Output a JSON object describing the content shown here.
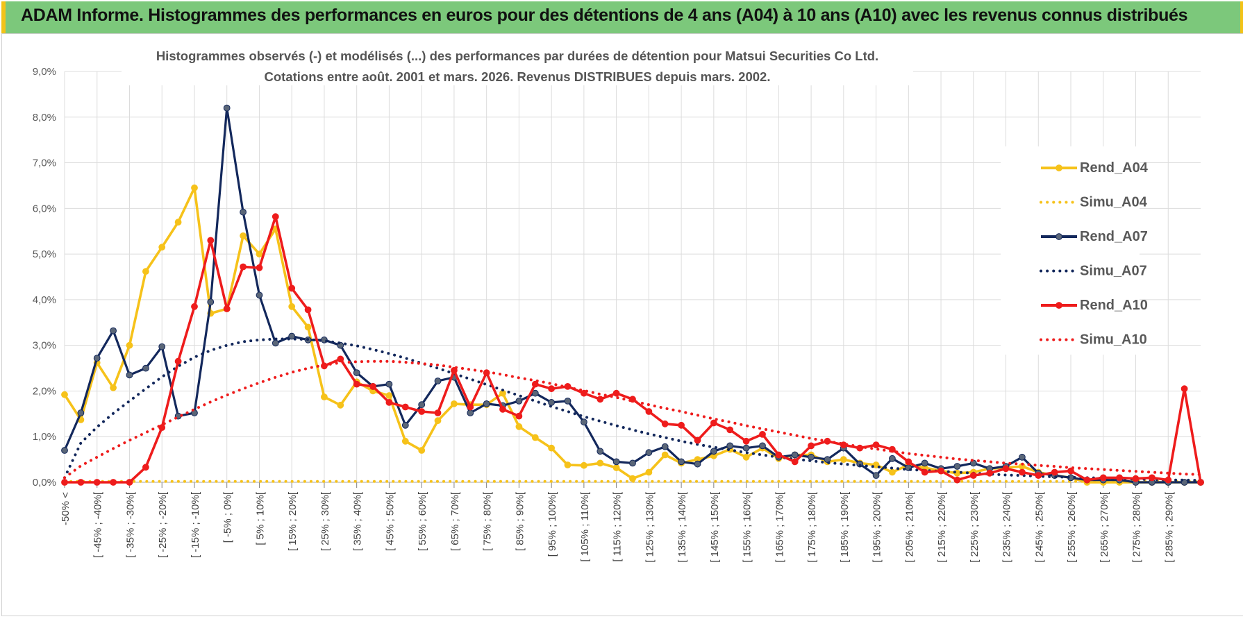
{
  "banner": {
    "title": "ADAM Informe. Histogrammes des performances en euros pour des détentions de 4 ans (A04) à 10 ans (A10) avec les revenus connus distribués"
  },
  "colors": {
    "a04": "#f6c21a",
    "a07": "#13285c",
    "a10": "#ee1c1c",
    "banner": "#7cc87b",
    "grid": "#dcdcdc"
  },
  "chart_data": {
    "type": "line",
    "title": "Histogrammes observés (-) et modélisés (...) des performances par durées de détention pour Matsui Securities Co Ltd.",
    "subtitle": "Cotations entre août. 2001 et mars. 2026. Revenus DISTRIBUES depuis mars. 2002.",
    "xlabel": "",
    "ylabel": "",
    "ylim": [
      0,
      9
    ],
    "y_ticks": [
      "0,0%",
      "1,0%",
      "2,0%",
      "3,0%",
      "4,0%",
      "5,0%",
      "6,0%",
      "7,0%",
      "8,0%",
      "9,0%"
    ],
    "grid": true,
    "legend_position": "right",
    "x_tick_labels": [
      "-50% <",
      "[ -45% ; -40%[",
      "[ -35% ; -30%[",
      "[ -25% ; -20%[",
      "[ -15% ; -10%[",
      "[ -5% ; 0%[",
      "[ 5% ; 10%[",
      "[ 15% ; 20%[",
      "[ 25% ; 30%[",
      "[ 35% ; 40%[",
      "[ 45% ; 50%[",
      "[ 55% ; 60%[",
      "[ 65% ; 70%[",
      "[ 75% ; 80%[",
      "[ 85% ; 90%[",
      "[ 95% ; 100%[",
      "[ 105% ; 110%[",
      "[ 115% ; 120%[",
      "[ 125% ; 130%[",
      "[ 135% ; 140%[",
      "[ 145% ; 150%[",
      "[ 155% ; 160%[",
      "[ 165% ; 170%[",
      "[ 175% ; 180%[",
      "[ 185% ; 190%[",
      "[ 195% ; 200%[",
      "[ 205% ; 210%[",
      "[ 215% ; 220%[",
      "[ 225% ; 230%[",
      "[ 235% ; 240%[",
      "[ 245% ; 250%[",
      "[ 255% ; 260%[",
      "[ 265% ; 270%[",
      "[ 275% ; 280%[",
      "[ 285% ; 290%["
    ],
    "series": [
      {
        "name": "Rend_A04",
        "style": "solid",
        "color": "#f6c21a",
        "values": [
          1.92,
          1.37,
          2.62,
          2.07,
          3.0,
          4.62,
          5.15,
          5.7,
          6.45,
          3.7,
          3.8,
          5.4,
          5.0,
          5.55,
          3.85,
          3.4,
          1.87,
          1.69,
          2.2,
          2.0,
          1.9,
          0.9,
          0.7,
          1.35,
          1.72,
          1.7,
          1.7,
          1.95,
          1.22,
          0.98,
          0.75,
          0.38,
          0.37,
          0.42,
          0.32,
          0.08,
          0.22,
          0.6,
          0.42,
          0.5,
          0.58,
          0.72,
          0.55,
          0.75,
          0.52,
          0.6,
          0.6,
          0.45,
          0.5,
          0.42,
          0.38,
          0.22,
          0.38,
          0.32,
          0.25,
          0.2,
          0.22,
          0.3,
          0.32,
          0.35,
          0.22,
          0.15,
          0.1,
          0.0,
          0.0,
          0.0,
          0.0,
          0.0,
          0.0,
          0.0,
          0.0
        ]
      },
      {
        "name": "Simu_A04",
        "style": "dotted",
        "color": "#f6c21a",
        "values": [
          0.02,
          0.02,
          0.02,
          0.02,
          0.02,
          0.02,
          0.02,
          0.02,
          0.02,
          0.02,
          0.02,
          0.02,
          0.02,
          0.02,
          0.02,
          0.02,
          0.02,
          0.02,
          0.02,
          0.02,
          0.02,
          0.02,
          0.02,
          0.02,
          0.02,
          0.02,
          0.02,
          0.02,
          0.02,
          0.02,
          0.02,
          0.02,
          0.02,
          0.02,
          0.02,
          0.02,
          0.02,
          0.02,
          0.02,
          0.02,
          0.02,
          0.02,
          0.02,
          0.02,
          0.02,
          0.02,
          0.02,
          0.02,
          0.02,
          0.02,
          0.02,
          0.02,
          0.02,
          0.02,
          0.02,
          0.02,
          0.02,
          0.02,
          0.02,
          0.02,
          0.02,
          0.02,
          0.02,
          0.02,
          0.02,
          0.02,
          0.02,
          0.02,
          0.02,
          0.02,
          0.02
        ]
      },
      {
        "name": "Rend_A07",
        "style": "solid",
        "color": "#13285c",
        "values": [
          0.7,
          1.52,
          2.72,
          3.32,
          2.35,
          2.5,
          2.97,
          1.45,
          1.52,
          3.95,
          8.2,
          5.92,
          4.1,
          3.05,
          3.2,
          3.12,
          3.12,
          3.0,
          2.4,
          2.1,
          2.15,
          1.25,
          1.7,
          2.22,
          2.3,
          1.52,
          1.72,
          1.68,
          1.78,
          1.95,
          1.75,
          1.78,
          1.32,
          0.68,
          0.45,
          0.42,
          0.65,
          0.78,
          0.45,
          0.4,
          0.68,
          0.8,
          0.75,
          0.8,
          0.55,
          0.6,
          0.55,
          0.5,
          0.75,
          0.4,
          0.15,
          0.52,
          0.32,
          0.42,
          0.3,
          0.35,
          0.42,
          0.3,
          0.35,
          0.55,
          0.2,
          0.15,
          0.1,
          0.05,
          0.05,
          0.05,
          0.0,
          0.0,
          0.0,
          0.0,
          0.0
        ]
      },
      {
        "name": "Simu_A07",
        "style": "dotted",
        "color": "#13285c",
        "values": [
          0.1,
          0.86,
          1.21,
          1.51,
          1.78,
          2.05,
          2.31,
          2.54,
          2.74,
          2.89,
          3.0,
          3.08,
          3.12,
          3.14,
          3.14,
          3.13,
          3.1,
          3.05,
          2.99,
          2.91,
          2.82,
          2.72,
          2.61,
          2.5,
          2.38,
          2.26,
          2.14,
          2.02,
          1.9,
          1.78,
          1.66,
          1.55,
          1.44,
          1.34,
          1.24,
          1.15,
          1.06,
          0.98,
          0.9,
          0.83,
          0.77,
          0.71,
          0.65,
          0.6,
          0.55,
          0.51,
          0.47,
          0.43,
          0.4,
          0.37,
          0.34,
          0.31,
          0.28,
          0.26,
          0.24,
          0.22,
          0.2,
          0.18,
          0.16,
          0.15,
          0.13,
          0.12,
          0.11,
          0.1,
          0.09,
          0.08,
          0.07,
          0.06,
          0.05,
          0.05,
          0.04
        ]
      },
      {
        "name": "Rend_A10",
        "style": "solid",
        "color": "#ee1c1c",
        "values": [
          0.0,
          0.0,
          0.0,
          0.0,
          0.0,
          0.33,
          1.2,
          2.65,
          3.85,
          5.3,
          3.8,
          4.72,
          4.7,
          5.82,
          4.25,
          3.78,
          2.55,
          2.7,
          2.15,
          2.1,
          1.75,
          1.65,
          1.55,
          1.52,
          2.45,
          1.65,
          2.4,
          1.6,
          1.45,
          2.15,
          2.05,
          2.1,
          1.95,
          1.82,
          1.95,
          1.82,
          1.55,
          1.28,
          1.25,
          0.92,
          1.3,
          1.15,
          0.9,
          1.05,
          0.6,
          0.45,
          0.8,
          0.9,
          0.82,
          0.75,
          0.82,
          0.72,
          0.45,
          0.22,
          0.25,
          0.05,
          0.15,
          0.2,
          0.3,
          0.22,
          0.15,
          0.22,
          0.25,
          0.05,
          0.1,
          0.1,
          0.08,
          0.1,
          0.05,
          2.05,
          0.0
        ]
      },
      {
        "name": "Simu_A10",
        "style": "dotted",
        "color": "#ee1c1c",
        "values": [
          0.1,
          0.36,
          0.55,
          0.74,
          0.92,
          1.09,
          1.26,
          1.43,
          1.6,
          1.76,
          1.91,
          2.05,
          2.18,
          2.3,
          2.41,
          2.5,
          2.57,
          2.62,
          2.64,
          2.65,
          2.65,
          2.63,
          2.6,
          2.57,
          2.52,
          2.47,
          2.42,
          2.36,
          2.29,
          2.23,
          2.16,
          2.08,
          2.01,
          1.93,
          1.86,
          1.78,
          1.7,
          1.62,
          1.55,
          1.47,
          1.39,
          1.32,
          1.24,
          1.17,
          1.1,
          1.03,
          0.96,
          0.9,
          0.84,
          0.78,
          0.73,
          0.68,
          0.63,
          0.59,
          0.55,
          0.51,
          0.48,
          0.45,
          0.42,
          0.4,
          0.37,
          0.35,
          0.32,
          0.3,
          0.28,
          0.26,
          0.24,
          0.22,
          0.2,
          0.18,
          0.17
        ]
      }
    ]
  }
}
